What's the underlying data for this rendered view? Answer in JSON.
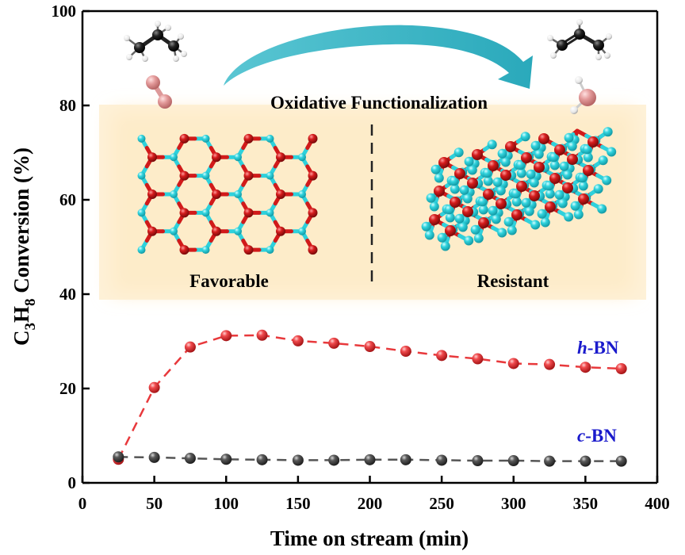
{
  "chart_data": {
    "type": "scatter",
    "title": "",
    "xlabel": "Time on stream (min)",
    "ylabel": {
      "part1": "C",
      "sub1": "3",
      "part2": "H",
      "sub2": "8",
      "part3": " Conversion (%)"
    },
    "xlim": [
      0,
      400
    ],
    "ylim": [
      0,
      100
    ],
    "xticks": [
      "0",
      "50",
      "100",
      "150",
      "200",
      "250",
      "300",
      "350",
      "400"
    ],
    "yticks": [
      "0",
      "20",
      "40",
      "60",
      "80",
      "100"
    ],
    "grid": false,
    "series": [
      {
        "name": "h-BN",
        "label_italic": "h",
        "label_rest": "-BN",
        "color": "#e8393c",
        "line": "dashed",
        "x": [
          25,
          50,
          75,
          100,
          125,
          150,
          175,
          200,
          225,
          250,
          275,
          300,
          325,
          350,
          375
        ],
        "y": [
          5.0,
          20.2,
          28.8,
          31.2,
          31.3,
          30.1,
          29.6,
          28.9,
          27.9,
          27.0,
          26.3,
          25.3,
          25.1,
          24.5,
          24.2
        ]
      },
      {
        "name": "c-BN",
        "label_italic": "c",
        "label_rest": "-BN",
        "color": "#555555",
        "line": "dashed",
        "x": [
          25,
          50,
          75,
          100,
          125,
          150,
          175,
          200,
          225,
          250,
          275,
          300,
          325,
          350,
          375
        ],
        "y": [
          5.5,
          5.4,
          5.2,
          5.0,
          4.9,
          4.8,
          4.8,
          4.9,
          4.9,
          4.8,
          4.7,
          4.7,
          4.6,
          4.6,
          4.6
        ]
      }
    ]
  },
  "inset": {
    "process_label": "Oxidative Functionalization",
    "left_label": "Favorable",
    "right_label": "Resistant",
    "colors": {
      "boron": "#d11a1a",
      "nitrogen": "#2ed1dc",
      "carbon": "#1a1a1a",
      "hydrogen": "#ffffff",
      "oxygen": "#e39a9a",
      "arrow": "#33b8c8",
      "panel": "#fce9c2"
    }
  }
}
